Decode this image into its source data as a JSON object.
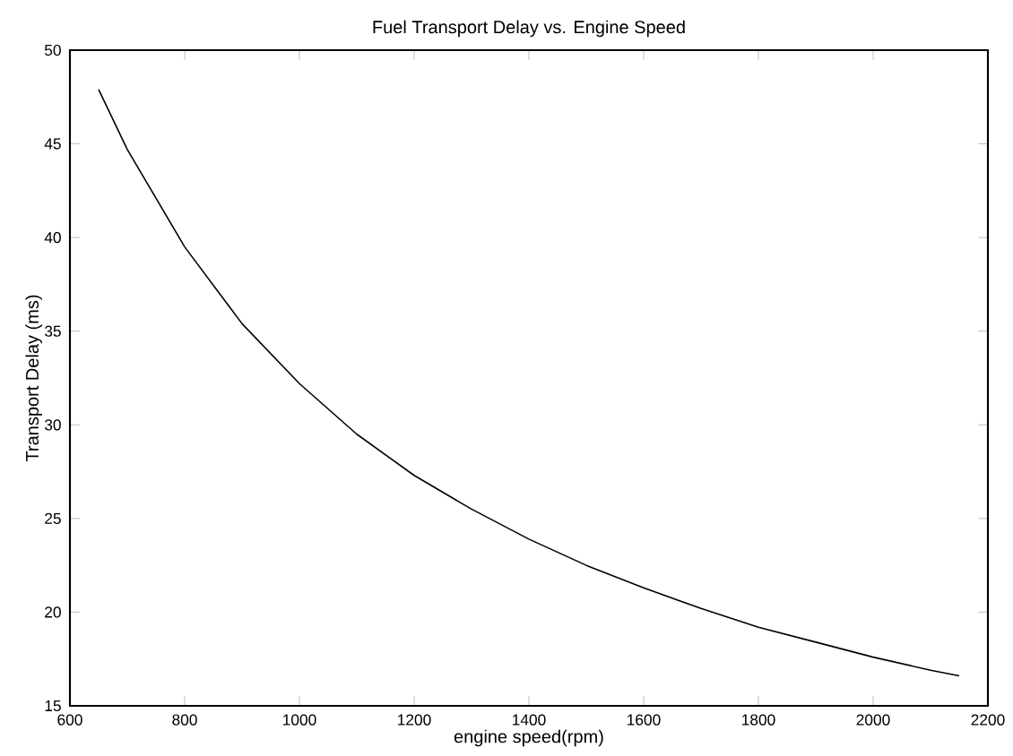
{
  "chart_data": {
    "type": "line",
    "title": "Fuel Transport Delay vs. Engine Speed",
    "xlabel": "engine speed(rpm)",
    "ylabel": "Transport Delay (ms)",
    "x": [
      650,
      700,
      800,
      900,
      1000,
      1100,
      1200,
      1300,
      1400,
      1500,
      1600,
      1700,
      1800,
      1900,
      2000,
      2100,
      2150
    ],
    "series": [
      {
        "color": "#000000",
        "values": [
          47.9,
          44.7,
          39.5,
          35.4,
          32.2,
          29.5,
          27.3,
          25.5,
          23.9,
          22.5,
          21.3,
          20.2,
          19.2,
          18.4,
          17.6,
          16.9,
          16.6
        ]
      }
    ],
    "xlim": [
      600,
      2200
    ],
    "ylim": [
      15,
      50
    ],
    "xticks": [
      600,
      800,
      1000,
      1200,
      1400,
      1600,
      1800,
      2000,
      2200
    ],
    "yticks": [
      15,
      20,
      25,
      30,
      35,
      40,
      45,
      50
    ],
    "grid": false,
    "marker": "none",
    "line_style": "solid"
  }
}
